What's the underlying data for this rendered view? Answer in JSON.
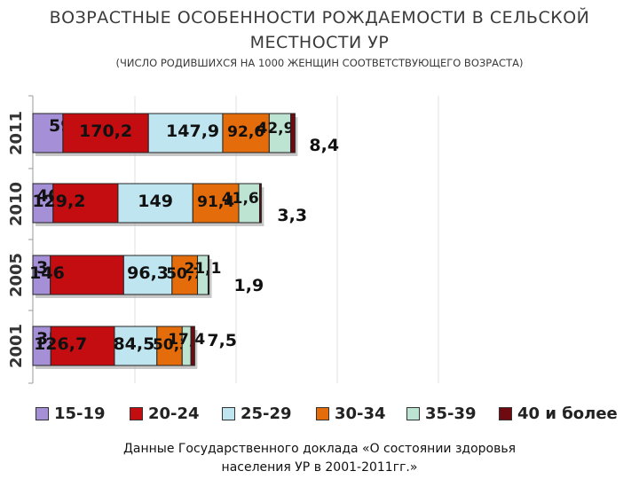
{
  "title_line1": "ВОЗРАСТНЫЕ ОСОБЕННОСТИ РОЖДАЕМОСТИ В СЕЛЬСКОЙ",
  "title_line2": "МЕСТНОСТИ  УР",
  "subtitle": "(ЧИСЛО РОДИВШИХСЯ НА 1000 ЖЕНЩИН СООТВЕТСТВУЮЩЕГО ВОЗРАСТА)",
  "source_line1": "Данные Государственного доклада «О состоянии здоровья",
  "source_line2": "населения УР в 2001-2011гг.»",
  "colors": {
    "15-19": "#a58fd6",
    "20-24": "#c40d10",
    "25-29": "#bfe6f0",
    "30-34": "#e46c0a",
    "35-39": "#bde3d2",
    "40 и более": "#6e0a10"
  },
  "chart_data": {
    "type": "bar",
    "orientation": "horizontal",
    "stacked": true,
    "categories": [
      "2011",
      "2010",
      "2005",
      "2001"
    ],
    "series": [
      {
        "name": "15-19",
        "values": [
          59.9,
          40.3,
          34.8,
          35.8
        ],
        "labels": [
          "59,9",
          "40,3",
          "34,8",
          "35,8"
        ]
      },
      {
        "name": "20-24",
        "values": [
          170.2,
          129.2,
          146,
          126.7
        ],
        "labels": [
          "170,2",
          "129,2",
          "146",
          "126,7"
        ]
      },
      {
        "name": "25-29",
        "values": [
          147.9,
          149,
          96.3,
          84.5
        ],
        "labels": [
          "147,9",
          "149",
          "96,3",
          "84,5"
        ]
      },
      {
        "name": "30-34",
        "values": [
          92.6,
          91.4,
          50.7,
          50.3
        ],
        "labels": [
          "92,6",
          "91,4",
          "50,7",
          "50,3"
        ]
      },
      {
        "name": "35-39",
        "values": [
          42.9,
          41.6,
          21.1,
          17.4
        ],
        "labels": [
          "42,9",
          "41,6",
          "21,1",
          "17,4"
        ]
      },
      {
        "name": "40 и более",
        "values": [
          8.4,
          3.3,
          1.9,
          7.5
        ],
        "labels": [
          "8,4",
          "3,3",
          "1,9",
          "7,5"
        ]
      }
    ],
    "legend_position": "bottom",
    "grid": true
  }
}
